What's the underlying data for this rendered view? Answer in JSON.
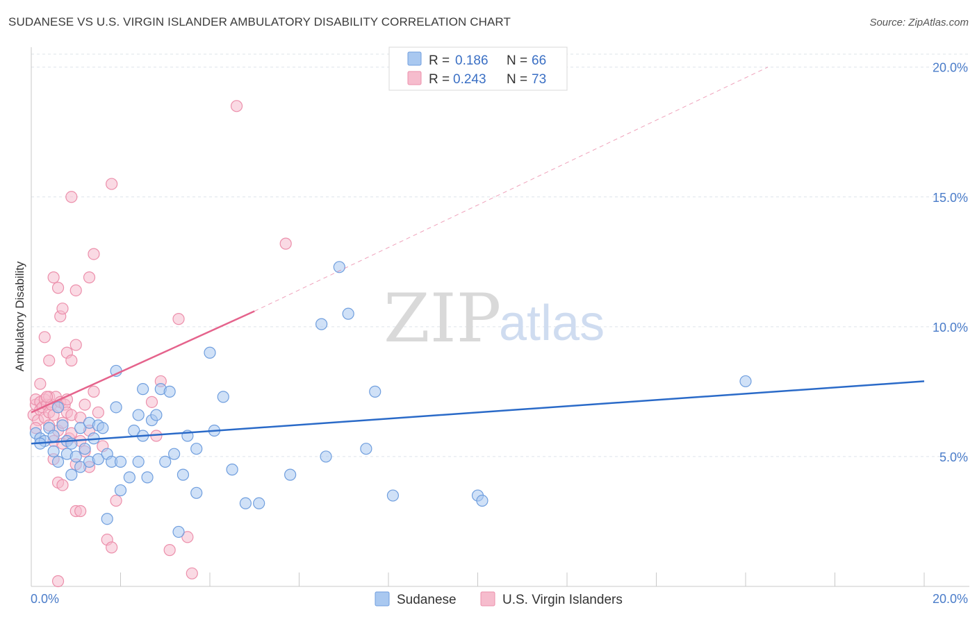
{
  "title": "SUDANESE VS U.S. VIRGIN ISLANDER AMBULATORY DISABILITY CORRELATION CHART",
  "source": "Source: ZipAtlas.com",
  "watermark": {
    "zip": "ZIP",
    "atlas": "atlas"
  },
  "colors": {
    "blue_fill": "#a9c8f0",
    "blue_stroke": "#6f9ede",
    "blue_line": "#2a6ac8",
    "pink_fill": "#f6bccd",
    "pink_stroke": "#ec8fab",
    "pink_line": "#e5638c",
    "grid": "#dde3ea",
    "tick_text": "#4a7cc9"
  },
  "legend": {
    "items": [
      {
        "r_label": "R =",
        "r_value": "0.186",
        "n_label": "N =",
        "n_value": "66"
      },
      {
        "r_label": "R =",
        "r_value": "0.243",
        "n_label": "N =",
        "n_value": "73"
      }
    ]
  },
  "bottom_legend": [
    "Sudanese",
    "U.S. Virgin Islanders"
  ],
  "chart_data": {
    "type": "scatter",
    "title": "SUDANESE VS U.S. VIRGIN ISLANDER AMBULATORY DISABILITY CORRELATION CHART",
    "xlabel": "",
    "ylabel": "Ambulatory Disability",
    "xlim": [
      0,
      20
    ],
    "ylim": [
      0,
      20.5
    ],
    "y_ticks": [
      5,
      10,
      15,
      20
    ],
    "y_tick_labels": [
      "5.0%",
      "10.0%",
      "15.0%",
      "20.0%"
    ],
    "x_tick_labels": [
      "0.0%",
      "20.0%"
    ],
    "grid": true,
    "legend_position": "top-center",
    "series": [
      {
        "name": "Sudanese",
        "R": 0.186,
        "N": 66,
        "trend": {
          "x0": 0,
          "y0": 5.5,
          "x1": 20,
          "y1": 7.9
        },
        "points": [
          [
            0.1,
            5.9
          ],
          [
            0.2,
            5.7
          ],
          [
            0.3,
            5.6
          ],
          [
            0.4,
            6.1
          ],
          [
            0.5,
            5.8
          ],
          [
            0.5,
            5.2
          ],
          [
            0.6,
            4.8
          ],
          [
            0.6,
            6.9
          ],
          [
            0.7,
            6.2
          ],
          [
            0.8,
            5.1
          ],
          [
            0.8,
            5.6
          ],
          [
            0.9,
            5.5
          ],
          [
            0.9,
            4.3
          ],
          [
            1.0,
            5.0
          ],
          [
            1.1,
            6.1
          ],
          [
            1.1,
            4.6
          ],
          [
            1.2,
            5.3
          ],
          [
            1.3,
            6.3
          ],
          [
            1.3,
            4.8
          ],
          [
            1.4,
            5.7
          ],
          [
            1.5,
            6.2
          ],
          [
            1.5,
            4.9
          ],
          [
            1.6,
            6.1
          ],
          [
            1.7,
            5.1
          ],
          [
            1.7,
            2.6
          ],
          [
            1.8,
            4.8
          ],
          [
            1.9,
            8.3
          ],
          [
            1.9,
            6.9
          ],
          [
            2.0,
            4.8
          ],
          [
            2.0,
            3.7
          ],
          [
            2.2,
            4.2
          ],
          [
            2.3,
            6.0
          ],
          [
            2.4,
            6.6
          ],
          [
            2.4,
            4.8
          ],
          [
            2.5,
            7.6
          ],
          [
            2.5,
            5.8
          ],
          [
            2.6,
            4.2
          ],
          [
            2.7,
            6.4
          ],
          [
            2.8,
            6.6
          ],
          [
            2.9,
            7.6
          ],
          [
            3.0,
            4.8
          ],
          [
            3.1,
            7.5
          ],
          [
            3.2,
            5.1
          ],
          [
            3.3,
            2.1
          ],
          [
            3.4,
            4.3
          ],
          [
            3.5,
            5.8
          ],
          [
            3.7,
            5.3
          ],
          [
            3.7,
            3.6
          ],
          [
            4.0,
            9.0
          ],
          [
            4.1,
            6.0
          ],
          [
            4.3,
            7.3
          ],
          [
            4.5,
            4.5
          ],
          [
            4.8,
            3.2
          ],
          [
            5.1,
            3.2
          ],
          [
            5.8,
            4.3
          ],
          [
            6.5,
            10.1
          ],
          [
            6.6,
            5.0
          ],
          [
            6.9,
            12.3
          ],
          [
            7.1,
            10.5
          ],
          [
            7.5,
            5.3
          ],
          [
            7.7,
            7.5
          ],
          [
            8.1,
            3.5
          ],
          [
            10.0,
            3.5
          ],
          [
            10.1,
            3.3
          ],
          [
            16.0,
            7.9
          ],
          [
            0.2,
            5.5
          ]
        ]
      },
      {
        "name": "U.S. Virgin Islanders",
        "R": 0.243,
        "N": 73,
        "trend": {
          "x0": 0,
          "y0": 6.7,
          "x1": 5,
          "y1": 10.6,
          "x_ext": 16.5,
          "y_ext": 20.0
        },
        "points": [
          [
            0.05,
            6.6
          ],
          [
            0.1,
            7.0
          ],
          [
            0.1,
            7.2
          ],
          [
            0.15,
            6.4
          ],
          [
            0.2,
            6.8
          ],
          [
            0.2,
            7.1
          ],
          [
            0.25,
            6.9
          ],
          [
            0.3,
            7.2
          ],
          [
            0.3,
            6.5
          ],
          [
            0.35,
            7.0
          ],
          [
            0.4,
            6.7
          ],
          [
            0.4,
            7.3
          ],
          [
            0.4,
            6.2
          ],
          [
            0.45,
            7.0
          ],
          [
            0.5,
            6.6
          ],
          [
            0.5,
            5.6
          ],
          [
            0.5,
            4.9
          ],
          [
            0.55,
            7.3
          ],
          [
            0.6,
            6.9
          ],
          [
            0.6,
            6.0
          ],
          [
            0.6,
            4.0
          ],
          [
            0.65,
            7.1
          ],
          [
            0.7,
            6.3
          ],
          [
            0.7,
            5.5
          ],
          [
            0.7,
            3.9
          ],
          [
            0.75,
            7.0
          ],
          [
            0.8,
            7.2
          ],
          [
            0.8,
            6.7
          ],
          [
            0.85,
            5.7
          ],
          [
            0.9,
            6.6
          ],
          [
            0.9,
            5.9
          ],
          [
            1.0,
            4.7
          ],
          [
            1.0,
            2.9
          ],
          [
            1.1,
            6.5
          ],
          [
            1.1,
            5.6
          ],
          [
            1.2,
            7.0
          ],
          [
            1.2,
            5.2
          ],
          [
            1.3,
            6.0
          ],
          [
            1.3,
            4.6
          ],
          [
            1.4,
            7.5
          ],
          [
            1.5,
            6.7
          ],
          [
            1.6,
            5.4
          ],
          [
            1.7,
            1.8
          ],
          [
            1.8,
            1.5
          ],
          [
            1.9,
            3.3
          ],
          [
            0.3,
            9.6
          ],
          [
            0.4,
            8.7
          ],
          [
            0.5,
            11.9
          ],
          [
            0.6,
            11.5
          ],
          [
            0.65,
            10.4
          ],
          [
            0.7,
            10.7
          ],
          [
            0.8,
            9.0
          ],
          [
            0.9,
            8.7
          ],
          [
            1.0,
            11.4
          ],
          [
            1.0,
            9.3
          ],
          [
            1.3,
            11.9
          ],
          [
            1.4,
            12.8
          ],
          [
            0.9,
            15.0
          ],
          [
            1.8,
            15.5
          ],
          [
            2.7,
            7.1
          ],
          [
            2.8,
            5.8
          ],
          [
            2.9,
            7.9
          ],
          [
            3.1,
            1.4
          ],
          [
            3.3,
            10.3
          ],
          [
            3.5,
            1.9
          ],
          [
            3.6,
            0.5
          ],
          [
            4.6,
            18.5
          ],
          [
            5.7,
            13.2
          ],
          [
            0.6,
            0.2
          ],
          [
            0.2,
            7.8
          ],
          [
            1.1,
            2.9
          ],
          [
            0.35,
            7.3
          ],
          [
            0.1,
            6.1
          ]
        ]
      }
    ]
  }
}
